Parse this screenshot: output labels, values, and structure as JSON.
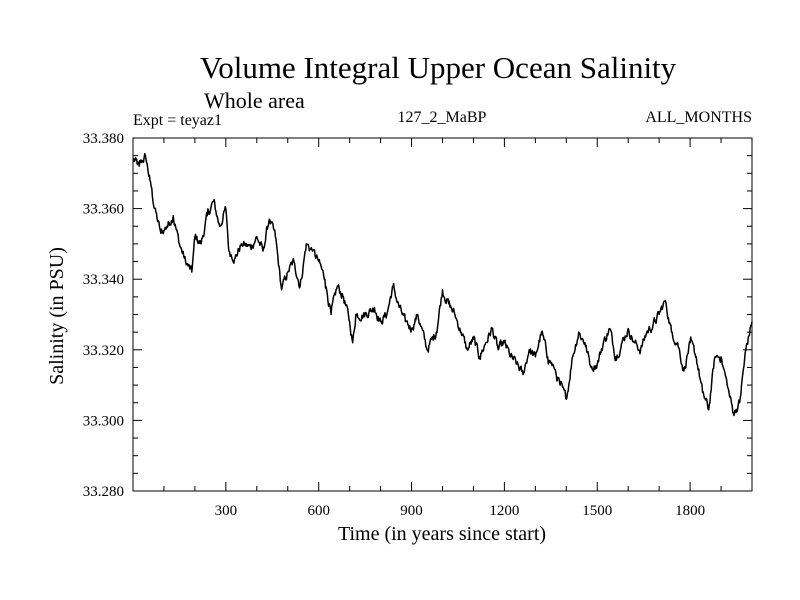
{
  "chart_data": {
    "type": "line",
    "title": "Volume Integral Upper Ocean Salinity",
    "subtitle": "Whole area",
    "annotations": {
      "left": "Expt = teyaz1",
      "center": "127_2_MaBP",
      "right": "ALL_MONTHS"
    },
    "xlabel": "Time (in years since start)",
    "ylabel": "Salinity (in PSU)",
    "xlim": [
      0,
      2000
    ],
    "ylim": [
      33.28,
      33.38
    ],
    "x_ticks": [
      300,
      600,
      900,
      1200,
      1500,
      1800
    ],
    "x_tick_labels": [
      "300",
      "600",
      "900",
      "1200",
      "1500",
      "1800"
    ],
    "y_ticks": [
      33.28,
      33.3,
      33.32,
      33.34,
      33.36,
      33.38
    ],
    "y_tick_labels": [
      "33.280",
      "33.300",
      "33.320",
      "33.340",
      "33.360",
      "33.380"
    ],
    "grid": false,
    "series": [
      {
        "name": "Salinity",
        "color": "#000000",
        "x": [
          0,
          20,
          40,
          55,
          70,
          90,
          110,
          130,
          150,
          170,
          190,
          200,
          220,
          240,
          260,
          280,
          300,
          310,
          330,
          350,
          380,
          400,
          420,
          440,
          460,
          480,
          500,
          520,
          540,
          560,
          580,
          600,
          620,
          640,
          660,
          680,
          700,
          710,
          720,
          750,
          780,
          800,
          820,
          840,
          860,
          880,
          900,
          920,
          950,
          980,
          1000,
          1020,
          1040,
          1060,
          1080,
          1100,
          1120,
          1140,
          1160,
          1180,
          1200,
          1220,
          1240,
          1260,
          1280,
          1300,
          1320,
          1340,
          1360,
          1380,
          1400,
          1420,
          1440,
          1460,
          1480,
          1500,
          1520,
          1540,
          1560,
          1580,
          1600,
          1620,
          1640,
          1660,
          1680,
          1700,
          1720,
          1740,
          1760,
          1780,
          1800,
          1820,
          1840,
          1860,
          1880,
          1900,
          1920,
          1940,
          1960,
          1980,
          2000
        ],
        "y": [
          33.374,
          33.372,
          33.375,
          33.368,
          33.36,
          33.353,
          33.355,
          33.358,
          33.35,
          33.345,
          33.342,
          33.352,
          33.35,
          33.358,
          33.362,
          33.355,
          33.36,
          33.348,
          33.346,
          33.35,
          33.349,
          33.352,
          33.348,
          33.357,
          33.352,
          33.337,
          33.342,
          33.345,
          33.338,
          33.35,
          33.348,
          33.345,
          33.34,
          33.33,
          33.338,
          33.335,
          33.328,
          33.322,
          33.33,
          33.33,
          33.332,
          33.328,
          33.33,
          33.338,
          33.332,
          33.328,
          33.326,
          33.33,
          33.32,
          33.325,
          33.337,
          33.333,
          33.33,
          33.325,
          33.32,
          33.323,
          33.318,
          33.322,
          33.326,
          33.32,
          33.322,
          33.318,
          33.316,
          33.313,
          33.32,
          33.318,
          33.325,
          33.318,
          33.315,
          33.31,
          33.306,
          33.318,
          33.325,
          33.322,
          33.315,
          33.316,
          33.322,
          33.326,
          33.318,
          33.322,
          33.326,
          33.322,
          33.32,
          33.325,
          33.327,
          33.33,
          33.334,
          33.325,
          33.322,
          33.314,
          33.322,
          33.318,
          33.308,
          33.303,
          33.318,
          33.318,
          33.31,
          33.302,
          33.305,
          33.32,
          33.328
        ]
      }
    ]
  }
}
